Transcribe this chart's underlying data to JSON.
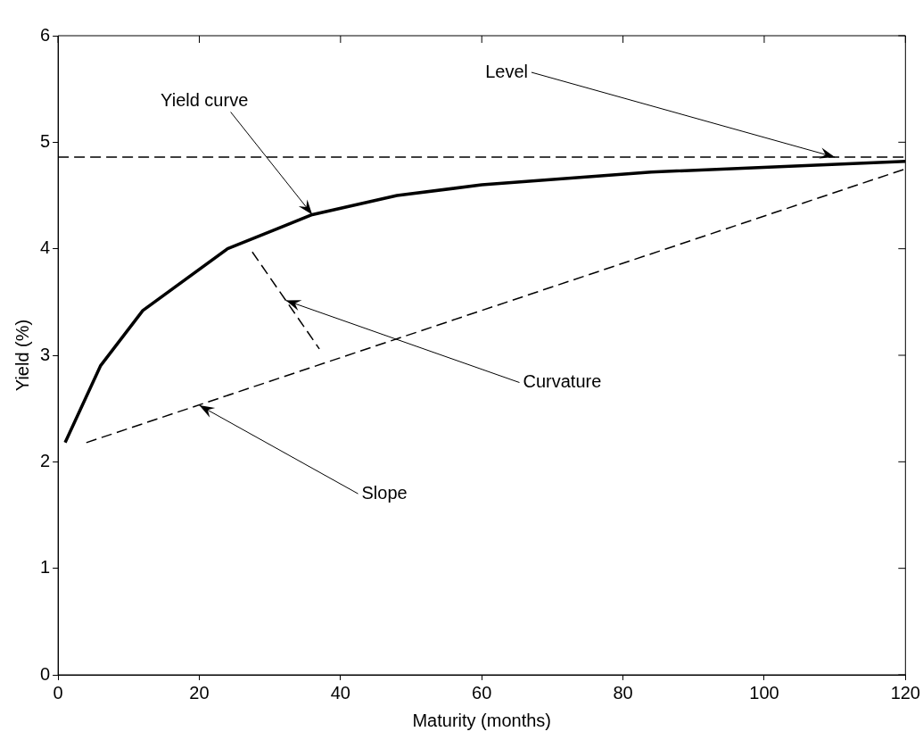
{
  "chart_data": {
    "type": "line",
    "xlabel": "Maturity (months)",
    "ylabel": "Yield (%)",
    "xlim": [
      0,
      120
    ],
    "xticks": [
      0,
      20,
      40,
      60,
      80,
      100,
      120
    ],
    "ylim": [
      0,
      6
    ],
    "yticks": [
      0,
      1,
      2,
      3,
      4,
      5,
      6
    ],
    "grid": false,
    "legend": false,
    "marker": "none",
    "series": [
      {
        "color": "#000000",
        "line_style": "solid",
        "x": [
          1,
          6,
          12,
          24,
          36,
          48,
          60,
          84,
          120
        ],
        "values": [
          2.18,
          2.9,
          3.42,
          4.0,
          4.32,
          4.5,
          4.6,
          4.72,
          4.82
        ]
      },
      {
        "color": "#000000",
        "line_style": "dashed",
        "x": [
          0,
          120
        ],
        "values": [
          4.86,
          4.86
        ]
      },
      {
        "color": "#000000",
        "line_style": "dashed",
        "x": [
          4,
          120
        ],
        "values": [
          2.18,
          4.75
        ]
      },
      {
        "color": "#000000",
        "line_style": "dashed",
        "x": [
          27.5,
          37
        ],
        "values": [
          3.97,
          3.06
        ]
      }
    ],
    "annotations": [
      {
        "text": "Yield curve",
        "x": 36,
        "y": 4.32
      },
      {
        "text": "Level",
        "x": 110,
        "y": 4.86
      },
      {
        "text": "Curvature",
        "x": 32.25,
        "y": 3.515
      },
      {
        "text": "Slope",
        "x": 20,
        "y": 2.53
      }
    ]
  }
}
